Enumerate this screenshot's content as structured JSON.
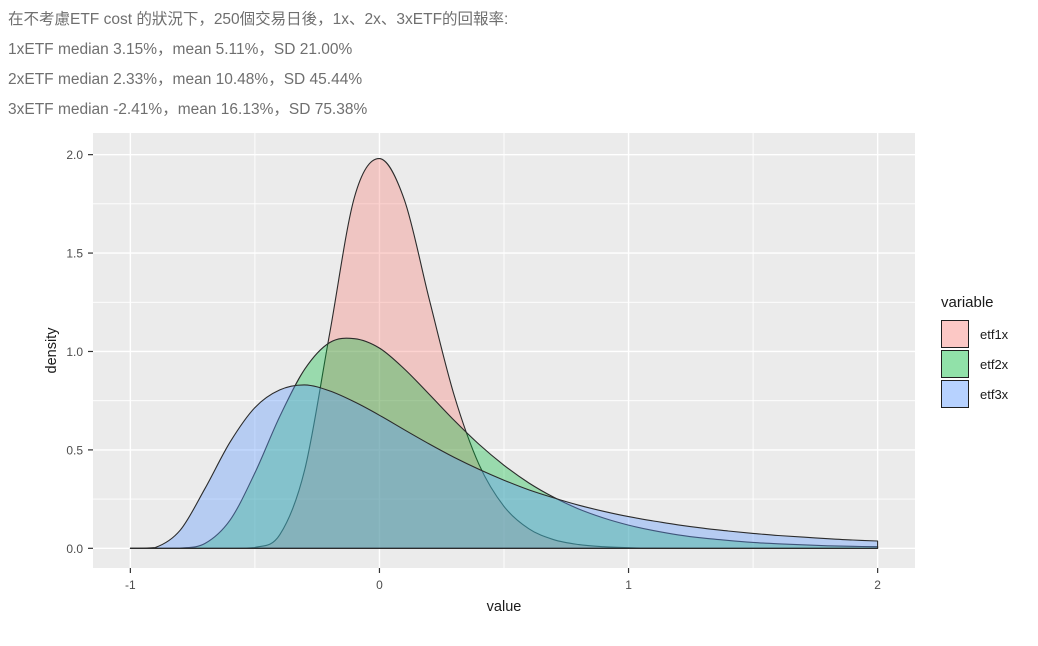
{
  "annotation": {
    "lines": [
      "在不考慮ETF cost 的狀況下，250個交易日後，1x、2x、3xETF的回報率:",
      "1xETF median 3.15%，mean 5.11%，SD 21.00%",
      "2xETF median 2.33%，mean 10.48%，SD 45.44%",
      "3xETF median -2.41%，mean 16.13%，SD 75.38%"
    ],
    "text_color": "#6f6f6f"
  },
  "chart_data": {
    "type": "area",
    "geom": "density",
    "title": "",
    "xlabel": "value",
    "ylabel": "density",
    "xlim": [
      -1.15,
      2.15
    ],
    "ylim": [
      -0.1,
      2.11
    ],
    "grid": true,
    "panel_bg": "#ebebeb",
    "grid_color": "#ffffff",
    "tick_color": "#333333",
    "x_ticks": [
      {
        "v": -1,
        "label": "-1"
      },
      {
        "v": 0,
        "label": "0"
      },
      {
        "v": 1,
        "label": "1"
      },
      {
        "v": 2,
        "label": "2"
      }
    ],
    "y_ticks": [
      {
        "v": 0.0,
        "label": "0.0"
      },
      {
        "v": 0.5,
        "label": "0.5"
      },
      {
        "v": 1.0,
        "label": "1.0"
      },
      {
        "v": 1.5,
        "label": "1.5"
      },
      {
        "v": 2.0,
        "label": "2.0"
      }
    ],
    "x_minor": [
      -0.5,
      0.5,
      1.5
    ],
    "y_minor": [
      0.25,
      0.75,
      1.25,
      1.75
    ],
    "x": [
      -1.0,
      -0.9,
      -0.8,
      -0.7,
      -0.6,
      -0.5,
      -0.4,
      -0.3,
      -0.2,
      -0.1,
      0.0,
      0.1,
      0.2,
      0.3,
      0.4,
      0.5,
      0.6,
      0.7,
      0.8,
      0.9,
      1.0,
      1.1,
      1.2,
      1.3,
      1.4,
      1.5,
      1.6,
      1.7,
      1.8,
      1.9,
      2.0
    ],
    "series": [
      {
        "name": "etf1x",
        "fill": "#F8766D",
        "fill_opacity": 0.32,
        "stroke": "#2b2b2b",
        "values": [
          0,
          0,
          0,
          0,
          0,
          0.004,
          0.069,
          0.399,
          1.09,
          1.785,
          1.98,
          1.77,
          1.264,
          0.777,
          0.425,
          0.213,
          0.099,
          0.044,
          0.019,
          0.008,
          0.003,
          0.001,
          0.0005,
          0.0002,
          0.0001,
          0,
          0,
          0,
          0,
          0,
          0
        ]
      },
      {
        "name": "etf2x",
        "fill": "#00BA38",
        "fill_opacity": 0.35,
        "stroke": "#2b2b2b",
        "values": [
          0,
          0,
          0.001,
          0.025,
          0.143,
          0.383,
          0.67,
          0.91,
          1.045,
          1.065,
          1.017,
          0.911,
          0.782,
          0.65,
          0.528,
          0.422,
          0.332,
          0.259,
          0.2,
          0.154,
          0.118,
          0.09,
          0.068,
          0.052,
          0.04,
          0.03,
          0.023,
          0.018,
          0.013,
          0.01,
          0.008
        ]
      },
      {
        "name": "etf3x",
        "fill": "#619CFF",
        "fill_opacity": 0.38,
        "stroke": "#2b2b2b",
        "values": [
          0,
          0.004,
          0.092,
          0.305,
          0.539,
          0.715,
          0.805,
          0.83,
          0.8,
          0.744,
          0.676,
          0.602,
          0.53,
          0.462,
          0.401,
          0.346,
          0.297,
          0.256,
          0.219,
          0.188,
          0.161,
          0.139,
          0.119,
          0.102,
          0.088,
          0.076,
          0.065,
          0.057,
          0.049,
          0.042,
          0.037
        ]
      }
    ],
    "legend": {
      "title": "variable",
      "position": "right"
    }
  }
}
